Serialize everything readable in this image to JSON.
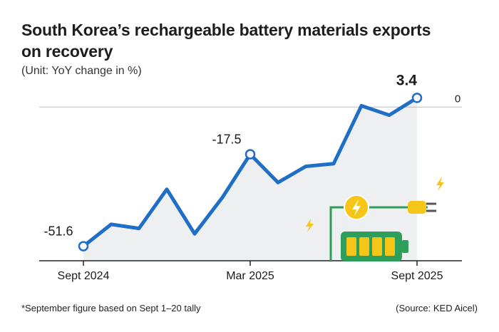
{
  "title": "South Korea’s rechargeable battery materials exports on recovery",
  "subtitle": "(Unit: YoY change in %)",
  "footnote": "*September figure based on Sept 1–20 tally",
  "source": "(Source: KED Aicel)",
  "colors": {
    "line": "#1f6ec7",
    "area": "#eeeff1",
    "zero_line": "#bdbdbd",
    "accent_yellow": "#f5c518",
    "battery_green": "#2e9e5b"
  },
  "chart_data": {
    "type": "line",
    "x": [
      "Sept 2024",
      "Oct 2024",
      "Nov 2024",
      "Dec 2024",
      "Jan 2025",
      "Feb 2025",
      "Mar 2025",
      "Apr 2025",
      "May 2025",
      "Jun 2025",
      "Jul 2025",
      "Aug 2025",
      "Sept 2025"
    ],
    "values": [
      -51.6,
      -43.5,
      -45.0,
      -30.5,
      -47.0,
      -33.5,
      -17.5,
      -28.0,
      -22.0,
      -21.0,
      0.5,
      -3.0,
      3.4
    ],
    "x_tick_labels": [
      "Sept 2024",
      "Mar 2025",
      "Sept 2025"
    ],
    "labeled_points": [
      {
        "index": 0,
        "label": "-51.6"
      },
      {
        "index": 6,
        "label": "-17.5"
      },
      {
        "index": 12,
        "label": "3.4"
      }
    ],
    "reference_line": {
      "value": 0,
      "label": "0"
    },
    "ylim": [
      -57,
      8
    ],
    "grid": false
  }
}
